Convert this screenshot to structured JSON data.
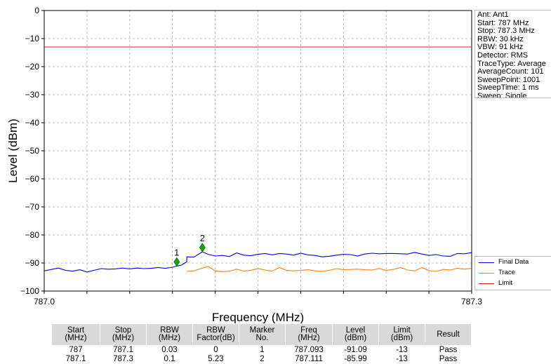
{
  "chart_data": {
    "type": "line",
    "xlabel": "Frequency (MHz)",
    "ylabel": "Level (dBm)",
    "xlim": [
      787.0,
      787.3
    ],
    "ylim": [
      -100,
      0
    ],
    "x_tick_labels": [
      "787.0",
      "787.3"
    ],
    "y_ticks": [
      0,
      -10,
      -20,
      -30,
      -40,
      -50,
      -60,
      -70,
      -80,
      -90,
      -100
    ],
    "y_tick_labels": [
      "0",
      "−10",
      "−20",
      "−30",
      "−40",
      "−50",
      "−60",
      "−70",
      "−80",
      "−90",
      "−100"
    ],
    "grid": true,
    "legend_position": "bottom-right",
    "series": [
      {
        "name": "Final Data",
        "color": "#0000ff",
        "x": [
          787.0,
          787.005,
          787.01,
          787.015,
          787.02,
          787.025,
          787.03,
          787.035,
          787.04,
          787.045,
          787.05,
          787.055,
          787.06,
          787.065,
          787.07,
          787.075,
          787.08,
          787.085,
          787.09,
          787.093,
          787.096,
          787.1,
          787.1001,
          787.105,
          787.111,
          787.115,
          787.12,
          787.125,
          787.13,
          787.135,
          787.14,
          787.145,
          787.15,
          787.155,
          787.16,
          787.165,
          787.17,
          787.175,
          787.18,
          787.185,
          787.19,
          787.195,
          787.2,
          787.205,
          787.21,
          787.215,
          787.22,
          787.225,
          787.23,
          787.235,
          787.24,
          787.245,
          787.25,
          787.255,
          787.26,
          787.265,
          787.27,
          787.275,
          787.28,
          787.285,
          787.29,
          787.295,
          787.3
        ],
        "y": [
          -92.8,
          -92.3,
          -91.8,
          -92.6,
          -92.9,
          -92.4,
          -93.2,
          -92.6,
          -92.0,
          -92.2,
          -92.1,
          -91.8,
          -92.1,
          -91.8,
          -92.0,
          -91.9,
          -91.6,
          -91.9,
          -91.5,
          -91.1,
          -90.8,
          -89.6,
          -87.8,
          -87.9,
          -86.0,
          -86.9,
          -87.5,
          -87.3,
          -87.7,
          -86.4,
          -87.2,
          -87.4,
          -86.9,
          -86.6,
          -87.1,
          -86.6,
          -86.8,
          -87.2,
          -86.5,
          -87.1,
          -87.3,
          -87.8,
          -87.6,
          -87.2,
          -86.9,
          -87.0,
          -87.5,
          -86.8,
          -86.5,
          -86.7,
          -86.6,
          -86.6,
          -86.7,
          -86.8,
          -86.2,
          -86.8,
          -87.3,
          -87.0,
          -87.5,
          -87.6,
          -86.6,
          -86.7,
          -86.3
        ]
      },
      {
        "name": "Trace",
        "color": "#ff7f0e",
        "x": [
          787.1,
          787.105,
          787.11,
          787.115,
          787.12,
          787.125,
          787.13,
          787.135,
          787.14,
          787.145,
          787.15,
          787.155,
          787.16,
          787.165,
          787.17,
          787.175,
          787.18,
          787.185,
          787.19,
          787.195,
          787.2,
          787.205,
          787.21,
          787.215,
          787.22,
          787.225,
          787.23,
          787.235,
          787.24,
          787.245,
          787.25,
          787.255,
          787.26,
          787.265,
          787.27,
          787.275,
          787.28,
          787.285,
          787.29,
          787.295,
          787.3
        ],
        "y": [
          -93.0,
          -92.8,
          -92.0,
          -91.2,
          -92.8,
          -93.1,
          -92.9,
          -92.2,
          -92.9,
          -92.6,
          -92.0,
          -92.5,
          -92.9,
          -91.6,
          -92.6,
          -92.8,
          -92.6,
          -92.4,
          -92.8,
          -93.0,
          -92.6,
          -92.0,
          -92.4,
          -92.3,
          -92.2,
          -92.4,
          -92.5,
          -92.0,
          -92.6,
          -92.3,
          -91.6,
          -92.5,
          -92.8,
          -91.6,
          -92.7,
          -93.0,
          -92.3,
          -92.5,
          -91.9,
          -92.2,
          -91.9
        ]
      },
      {
        "name": "Limit",
        "color": "#e31a1c",
        "x": [
          787.0,
          787.3
        ],
        "y": [
          -13,
          -13
        ]
      }
    ],
    "markers": [
      {
        "label": "1",
        "x": 787.093,
        "y": -89.6
      },
      {
        "label": "2",
        "x": 787.111,
        "y": -84.5
      }
    ]
  },
  "info_box": {
    "lines": [
      "Ant: Ant1",
      "Start: 787 MHz",
      "Stop: 787.3 MHz",
      "RBW: 30 kHz",
      "VBW: 91 kHz",
      "Detector: RMS",
      "TraceType: Average",
      "AverageCount: 101",
      "SweepPoint: 1001",
      "SweepTime: 1 ms",
      "Sweep: Single"
    ]
  },
  "legend": {
    "items": [
      {
        "label": "Final Data",
        "color": "#0000ff"
      },
      {
        "label": "Trace",
        "color": "#ff7f0e"
      },
      {
        "label": "Limit",
        "color": "#e31a1c"
      }
    ]
  },
  "results_table": {
    "headers": [
      {
        "line1": "Start",
        "line2": "(MHz)"
      },
      {
        "line1": "Stop",
        "line2": "(MHz)"
      },
      {
        "line1": "RBW",
        "line2": "(MHz)"
      },
      {
        "line1": "RBW",
        "line2": "Factor(dB)"
      },
      {
        "line1": "Marker",
        "line2": "No."
      },
      {
        "line1": "Freq",
        "line2": "(MHz)"
      },
      {
        "line1": "Level",
        "line2": "(dBm)"
      },
      {
        "line1": "Limit",
        "line2": "(dBm)"
      },
      {
        "line1": "Result",
        "line2": ""
      }
    ],
    "rows": [
      [
        "787",
        "787.1",
        "0.03",
        "0",
        "1",
        "787.093",
        "-91.09",
        "-13",
        "Pass"
      ],
      [
        "787.1",
        "787.3",
        "0.1",
        "5.23",
        "2",
        "787.111",
        "-85.99",
        "-13",
        "Pass"
      ]
    ]
  }
}
